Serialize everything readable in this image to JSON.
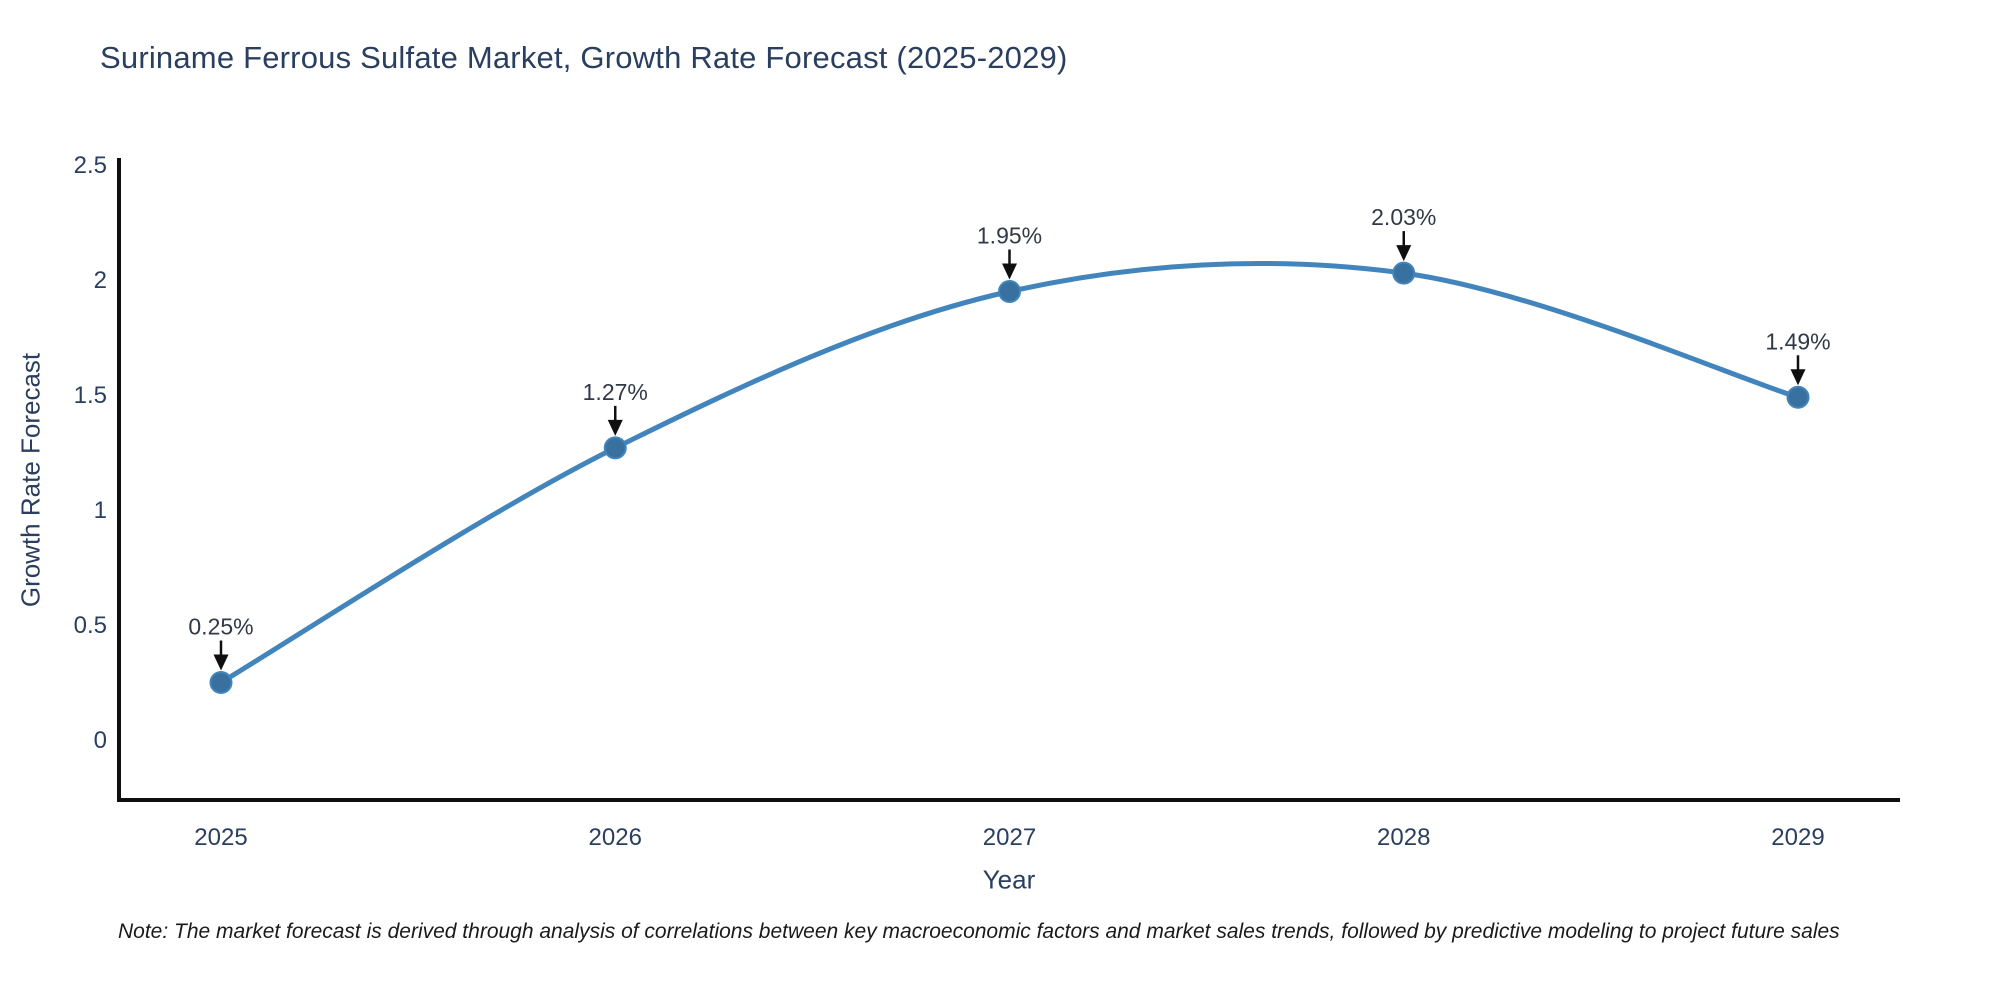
{
  "note": "Note: The market forecast is derived through analysis of correlations between key macroeconomic factors and market sales trends, followed by predictive modeling to project future sales",
  "chart_data": {
    "type": "line",
    "title": "Suriname Ferrous Sulfate Market, Growth Rate Forecast (2025-2029)",
    "x": [
      "2025",
      "2026",
      "2027",
      "2028",
      "2029"
    ],
    "series": [
      {
        "name": "Growth Rate Forecast",
        "values": [
          0.25,
          1.27,
          1.95,
          2.03,
          1.49
        ]
      }
    ],
    "point_labels": [
      "0.25%",
      "1.27%",
      "1.95%",
      "2.03%",
      "1.49%"
    ],
    "xlabel": "Year",
    "ylabel": "Growth Rate Forecast",
    "ylim": [
      -0.26,
      2.53
    ],
    "yticks": [
      0,
      0.5,
      1,
      1.5,
      2,
      2.5
    ],
    "grid": false,
    "legend": "none",
    "line_shape": "spline",
    "colors": {
      "line": "#4285bd",
      "marker": "#38719f",
      "axis_line": "#0f0f0f",
      "axis_text": "#2a3f5f",
      "annotation_text": "#323946",
      "arrow": "#0f0f0f"
    }
  }
}
